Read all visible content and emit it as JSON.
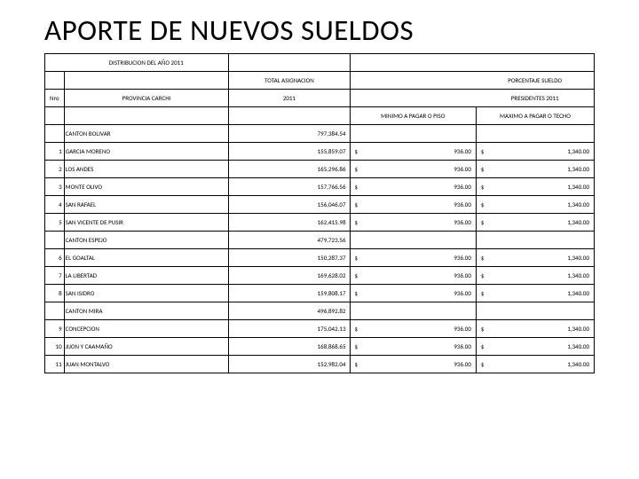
{
  "title": "APORTE DE NUEVOS SUELDOS",
  "headers": {
    "dist": "DISTRIBUCION DEL AÑO 2011",
    "total": "TOTAL ASIGNACION",
    "porc": "PORCENTAJE SUELDO",
    "nro": "Nro",
    "prov": "PROVINCIA  CARCHI",
    "y2011": "2011",
    "pres": "PRESIDENTES  2011",
    "min": "MINIMO A PAGAR O PISO",
    "max": "MAXIMO A PAGAR O TECHO"
  },
  "sections": [
    {
      "canton": "CANTON BOLIVAR",
      "amt": "797,384.54"
    },
    {
      "n": "1",
      "name": "GARCIA MORENO",
      "amt": "155,859.07",
      "min": "936.00",
      "max": "1,340.00"
    },
    {
      "n": "2",
      "name": "LOS ANDES",
      "amt": "165,296.86",
      "min": "936.00",
      "max": "1,340.00"
    },
    {
      "n": "3",
      "name": "MONTE OLIVO",
      "amt": "157,766.56",
      "min": "936.00",
      "max": "1,340.00"
    },
    {
      "n": "4",
      "name": "SAN RAFAEL",
      "amt": "156,046.07",
      "min": "936.00",
      "max": "1,340.00"
    },
    {
      "n": "5",
      "name": "SAN VICENTE DE PUSIR",
      "amt": "162,415.98",
      "min": "936.00",
      "max": "1,340.00"
    },
    {
      "canton": "CANTON ESPEJO",
      "amt": "479,723.56"
    },
    {
      "n": "6",
      "name": "EL GOALTAL",
      "amt": "150,287.37",
      "min": "936.00",
      "max": "1,340.00"
    },
    {
      "n": "7",
      "name": "LA LIBERTAD",
      "amt": "169,628.02",
      "min": "936.00",
      "max": "1,340.00"
    },
    {
      "n": "8",
      "name": "SAN ISIDRO",
      "amt": "159,808.17",
      "min": "936.00",
      "max": "1,340.00"
    },
    {
      "canton": "CANTON MIRA",
      "amt": "496,892.82"
    },
    {
      "n": "9",
      "name": "CONCEPCION",
      "amt": "175,042.13",
      "min": "936.00",
      "max": "1,340.00"
    },
    {
      "n": "10",
      "name": "JIJON Y CAAMAÑO",
      "amt": "168,868.65",
      "min": "936.00",
      "max": "1,340.00"
    },
    {
      "n": "11",
      "name": "JUAN MONTALVO",
      "amt": "152,982.04",
      "min": "936.00",
      "max": "1,340.00"
    }
  ],
  "currency": "$"
}
